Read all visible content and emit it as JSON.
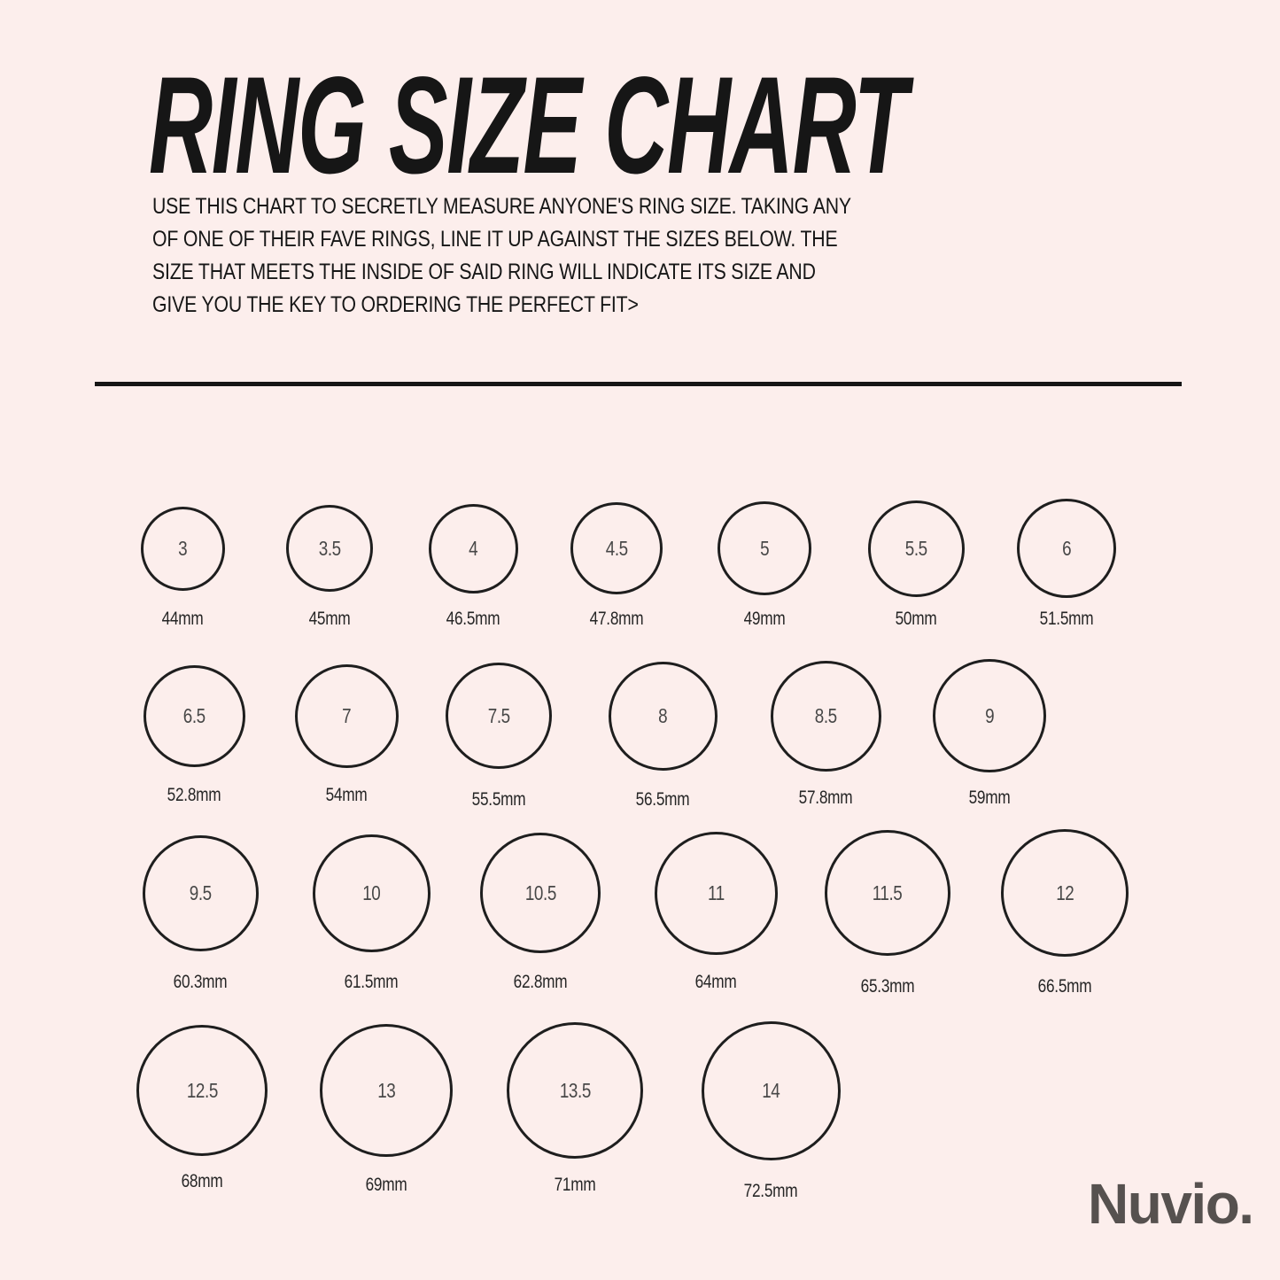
{
  "page": {
    "title": "RING SIZE CHART",
    "description": "USE THIS CHART TO SECRETLY MEASURE ANYONE'S RING SIZE. TAKING ANY\nOF ONE OF THEIR FAVE RINGS, LINE IT UP AGAINST THE SIZES BELOW. THE\nSIZE THAT MEETS THE INSIDE OF SAID RING WILL INDICATE ITS SIZE AND\nGIVE YOU THE KEY TO ORDERING THE PERFECT FIT>",
    "brand": "Nuvio."
  },
  "colors": {
    "background": "#fceeec",
    "ink": "#161616",
    "circle_stroke": "#1e1e1e",
    "brand_gray": "#56514f"
  },
  "rings": {
    "unit": "mm",
    "rows": [
      [
        {
          "size": "3",
          "mm": 44,
          "label": "44mm"
        },
        {
          "size": "3.5",
          "mm": 45,
          "label": "45mm"
        },
        {
          "size": "4",
          "mm": 46.5,
          "label": "46.5mm"
        },
        {
          "size": "4.5",
          "mm": 47.8,
          "label": "47.8mm"
        },
        {
          "size": "5",
          "mm": 49,
          "label": "49mm"
        },
        {
          "size": "5.5",
          "mm": 50,
          "label": "50mm"
        },
        {
          "size": "6",
          "mm": 51.5,
          "label": "51.5mm"
        }
      ],
      [
        {
          "size": "6.5",
          "mm": 52.8,
          "label": "52.8mm"
        },
        {
          "size": "7",
          "mm": 54,
          "label": "54mm"
        },
        {
          "size": "7.5",
          "mm": 55.5,
          "label": "55.5mm"
        },
        {
          "size": "8",
          "mm": 56.5,
          "label": "56.5mm"
        },
        {
          "size": "8.5",
          "mm": 57.8,
          "label": "57.8mm"
        },
        {
          "size": "9",
          "mm": 59,
          "label": "59mm"
        }
      ],
      [
        {
          "size": "9.5",
          "mm": 60.3,
          "label": "60.3mm"
        },
        {
          "size": "10",
          "mm": 61.5,
          "label": "61.5mm"
        },
        {
          "size": "10.5",
          "mm": 62.8,
          "label": "62.8mm"
        },
        {
          "size": "11",
          "mm": 64,
          "label": "64mm"
        },
        {
          "size": "11.5",
          "mm": 65.3,
          "label": "65.3mm"
        },
        {
          "size": "12",
          "mm": 66.5,
          "label": "66.5mm"
        }
      ],
      [
        {
          "size": "12.5",
          "mm": 68,
          "label": "68mm"
        },
        {
          "size": "13",
          "mm": 69,
          "label": "69mm"
        },
        {
          "size": "13.5",
          "mm": 71,
          "label": "71mm"
        },
        {
          "size": "14",
          "mm": 72.5,
          "label": "72.5mm"
        }
      ]
    ]
  }
}
